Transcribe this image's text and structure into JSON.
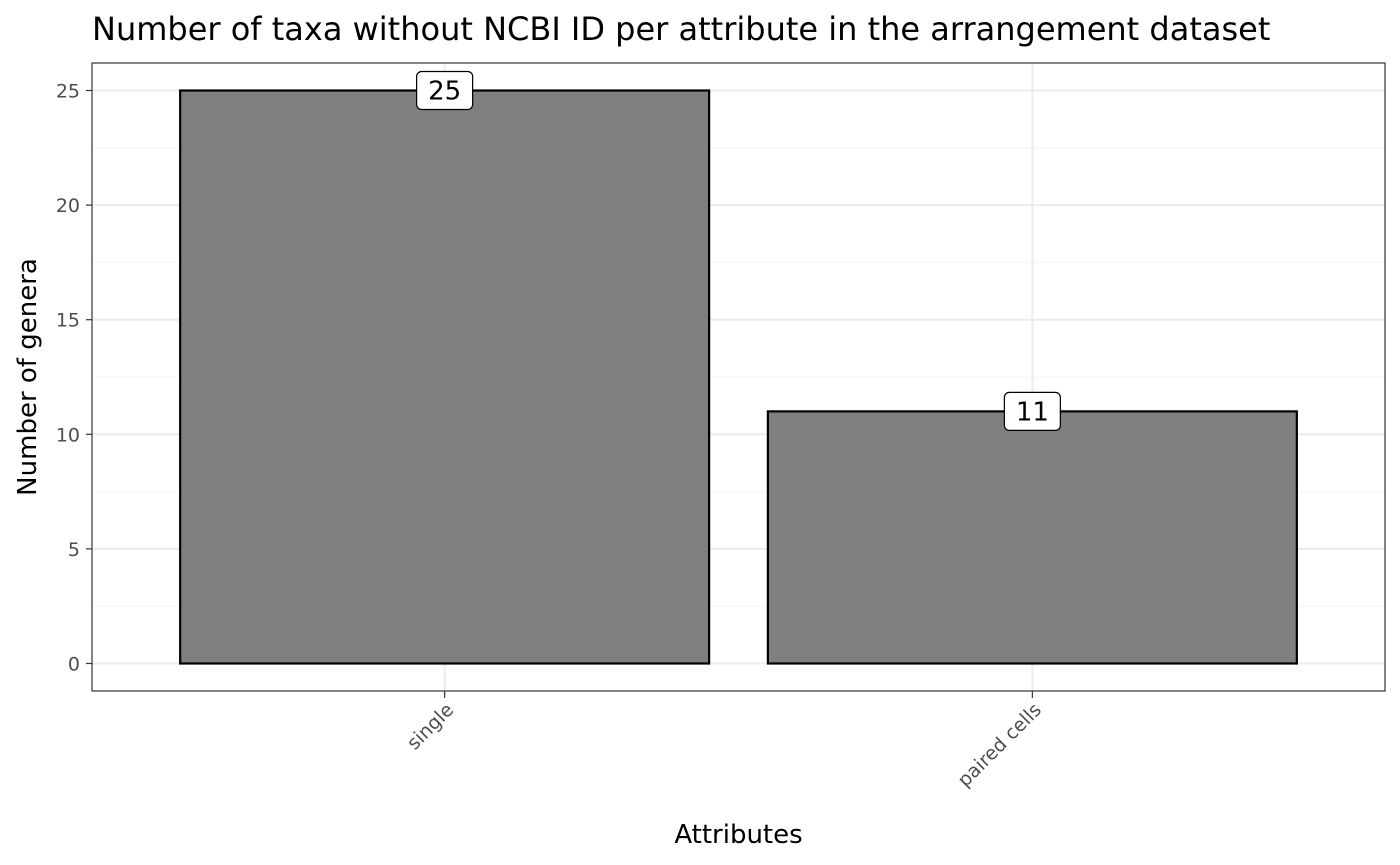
{
  "chart_data": {
    "type": "bar",
    "title": "Number of taxa without NCBI ID per attribute in the arrangement dataset",
    "xlabel": "Attributes",
    "ylabel": "Number of genera",
    "categories": [
      "single",
      "paired cells"
    ],
    "values": [
      25,
      11
    ],
    "ylim": [
      -1.2,
      26.2
    ],
    "yticks": [
      0,
      5,
      10,
      15,
      20,
      25
    ],
    "data_labels": [
      "25",
      "11"
    ],
    "grid": true,
    "legend": "none",
    "colors": {
      "bar_fill": "#7f7f7f",
      "bar_stroke": "#000000",
      "grid_major": "#ebebeb",
      "grid_minor": "#f4f4f4",
      "panel_border": "#333333"
    }
  }
}
